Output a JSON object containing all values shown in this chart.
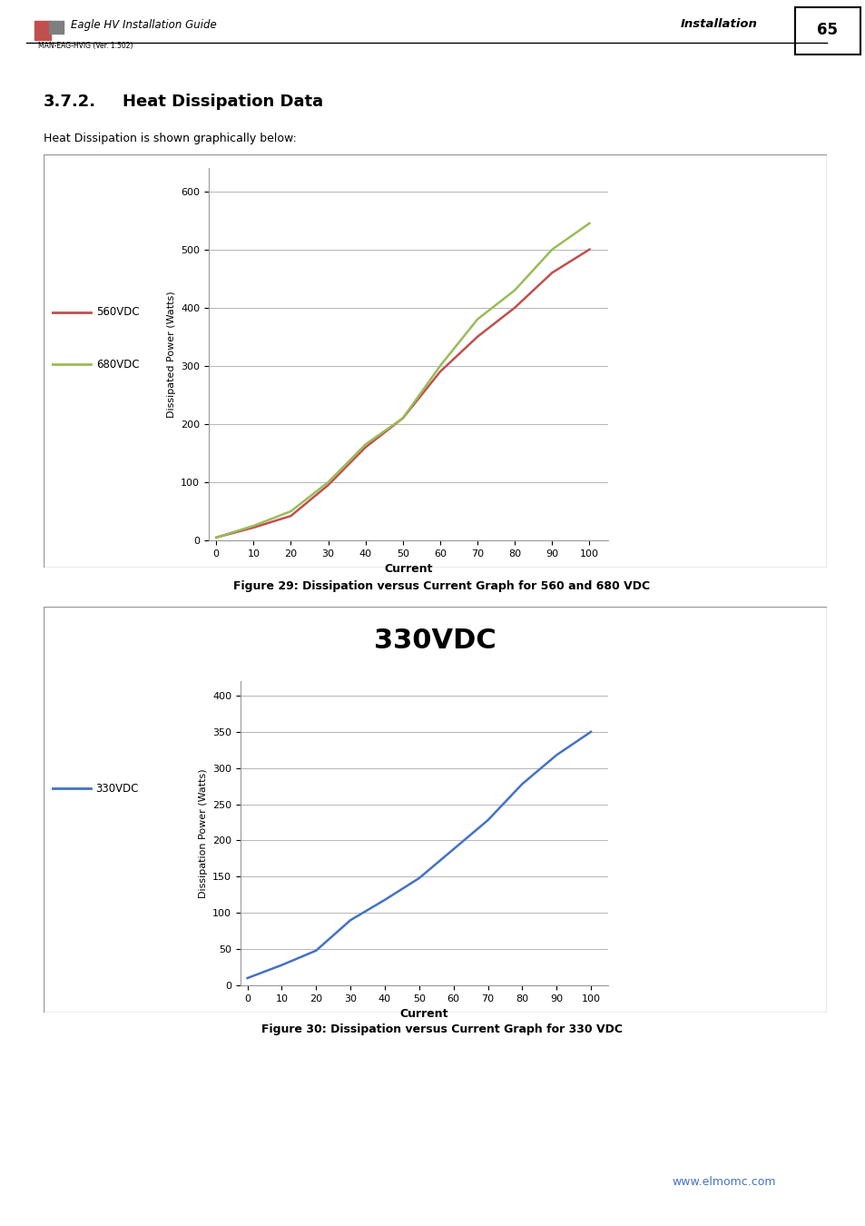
{
  "page_title": "Eagle HV Installation Guide",
  "page_subtitle": "MAN-EAG-HVIG (Ver. 1.502)",
  "page_right": "Installation",
  "page_num": "65",
  "section": "3.7.2.",
  "section_title": "Heat Dissipation Data",
  "intro_text": "Heat Dissipation is shown graphically below:",
  "fig1_caption": "Figure 29: Dissipation versus Current Graph for 560 and 680 VDC",
  "fig2_caption": "Figure 30: Dissipation versus Current Graph for 330 VDC",
  "fig2_title": "330VDC",
  "footer_url": "www.elmomc.com",
  "chart1": {
    "x": [
      0,
      10,
      20,
      30,
      40,
      50,
      60,
      70,
      80,
      90,
      100
    ],
    "y_560": [
      5,
      22,
      42,
      95,
      160,
      210,
      290,
      350,
      400,
      460,
      500
    ],
    "y_680": [
      5,
      25,
      50,
      100,
      165,
      210,
      300,
      380,
      430,
      500,
      545
    ],
    "color_560": "#C0504D",
    "color_680": "#9BBB59",
    "label_560": "560VDC",
    "label_680": "680VDC",
    "ylabel": "Dissipated Power (Watts)",
    "xlabel": "Current",
    "yticks": [
      0,
      100,
      200,
      300,
      400,
      500,
      600
    ],
    "xticks": [
      0,
      10,
      20,
      30,
      40,
      50,
      60,
      70,
      80,
      90,
      100
    ],
    "ylim": [
      0,
      640
    ],
    "xlim": [
      -2,
      105
    ]
  },
  "chart2": {
    "x": [
      0,
      10,
      20,
      30,
      40,
      50,
      60,
      70,
      80,
      90,
      100
    ],
    "y_330": [
      10,
      28,
      48,
      90,
      118,
      148,
      188,
      228,
      278,
      318,
      350
    ],
    "color_330": "#4472C4",
    "label_330": "330VDC",
    "ylabel": "Dissipation Power (Watts)",
    "xlabel": "Current",
    "yticks": [
      0,
      50,
      100,
      150,
      200,
      250,
      300,
      350,
      400
    ],
    "xticks": [
      0,
      10,
      20,
      30,
      40,
      50,
      60,
      70,
      80,
      90,
      100
    ],
    "ylim": [
      0,
      420
    ],
    "xlim": [
      -2,
      105
    ]
  },
  "bg_color": "#FFFFFF",
  "chart_bg": "#FFFFFF",
  "grid_color": "#AAAAAA",
  "border_color": "#000000",
  "font_color": "#000000"
}
